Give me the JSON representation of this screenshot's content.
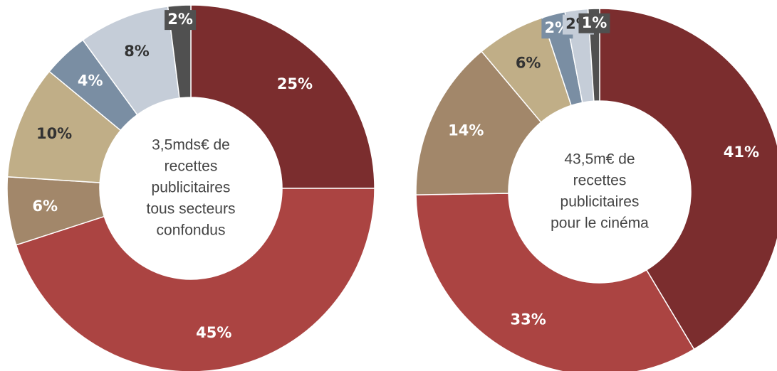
{
  "chart_data": [
    {
      "type": "donut",
      "values": [
        25,
        45,
        6,
        10,
        4,
        8,
        2
      ],
      "value_labels": [
        "25%",
        "45%",
        "6%",
        "10%",
        "4%",
        "8%",
        "2%"
      ],
      "colors": [
        "#7b2d2e",
        "#ab4442",
        "#a2876a",
        "#c0ae87",
        "#7a8ea3",
        "#c5cdd8",
        "#505050"
      ],
      "center_text": [
        "3,5mds€ de",
        "recettes",
        "publicitaires",
        "tous secteurs",
        "confondus"
      ]
    },
    {
      "type": "donut",
      "values": [
        41,
        33,
        14,
        6,
        2,
        2,
        1
      ],
      "value_labels": [
        "41%",
        "33%",
        "14%",
        "6%",
        "2%",
        "2%",
        "1%"
      ],
      "colors": [
        "#7b2d2e",
        "#ab4442",
        "#a2876a",
        "#c0ae87",
        "#7a8ea3",
        "#c5cdd8",
        "#505050"
      ],
      "center_text": [
        "43,5m€ de",
        "recettes",
        "publicitaires",
        "pour le cinéma"
      ]
    }
  ]
}
